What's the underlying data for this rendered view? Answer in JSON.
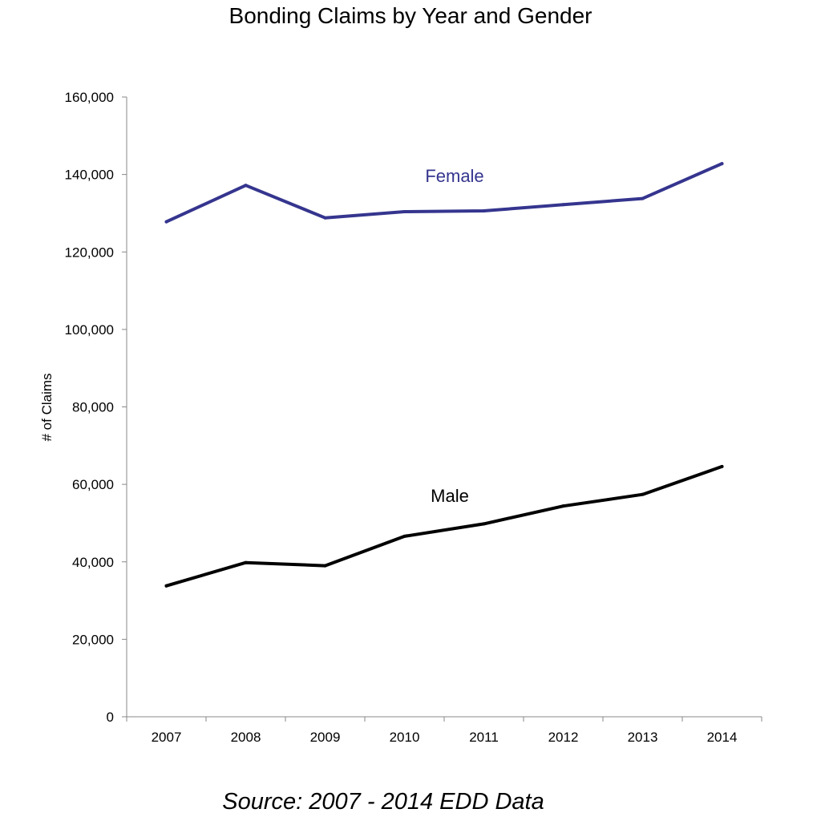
{
  "chart_data": {
    "type": "line",
    "title": "Bonding Claims by Year and Gender",
    "ylabel": "# of Claims",
    "xlabel": "",
    "categories": [
      "2007",
      "2008",
      "2009",
      "2010",
      "2011",
      "2012",
      "2013",
      "2014"
    ],
    "ylim": [
      0,
      160000
    ],
    "yticks": [
      0,
      20000,
      40000,
      60000,
      80000,
      100000,
      120000,
      140000,
      160000
    ],
    "ytick_labels": [
      "0",
      "20,000",
      "40,000",
      "60,000",
      "80,000",
      "100,000",
      "120,000",
      "140,000",
      "160,000"
    ],
    "grid": false,
    "legend": "none",
    "series": [
      {
        "name": "Female",
        "color": "#35358f",
        "values": [
          127800,
          137200,
          128800,
          130400,
          130600,
          132200,
          133800,
          142800
        ]
      },
      {
        "name": "Male",
        "color": "#000000",
        "values": [
          33800,
          39800,
          39000,
          46600,
          49800,
          54400,
          57400,
          64600
        ]
      }
    ],
    "source": "Source: 2007 - 2014 EDD Data"
  }
}
